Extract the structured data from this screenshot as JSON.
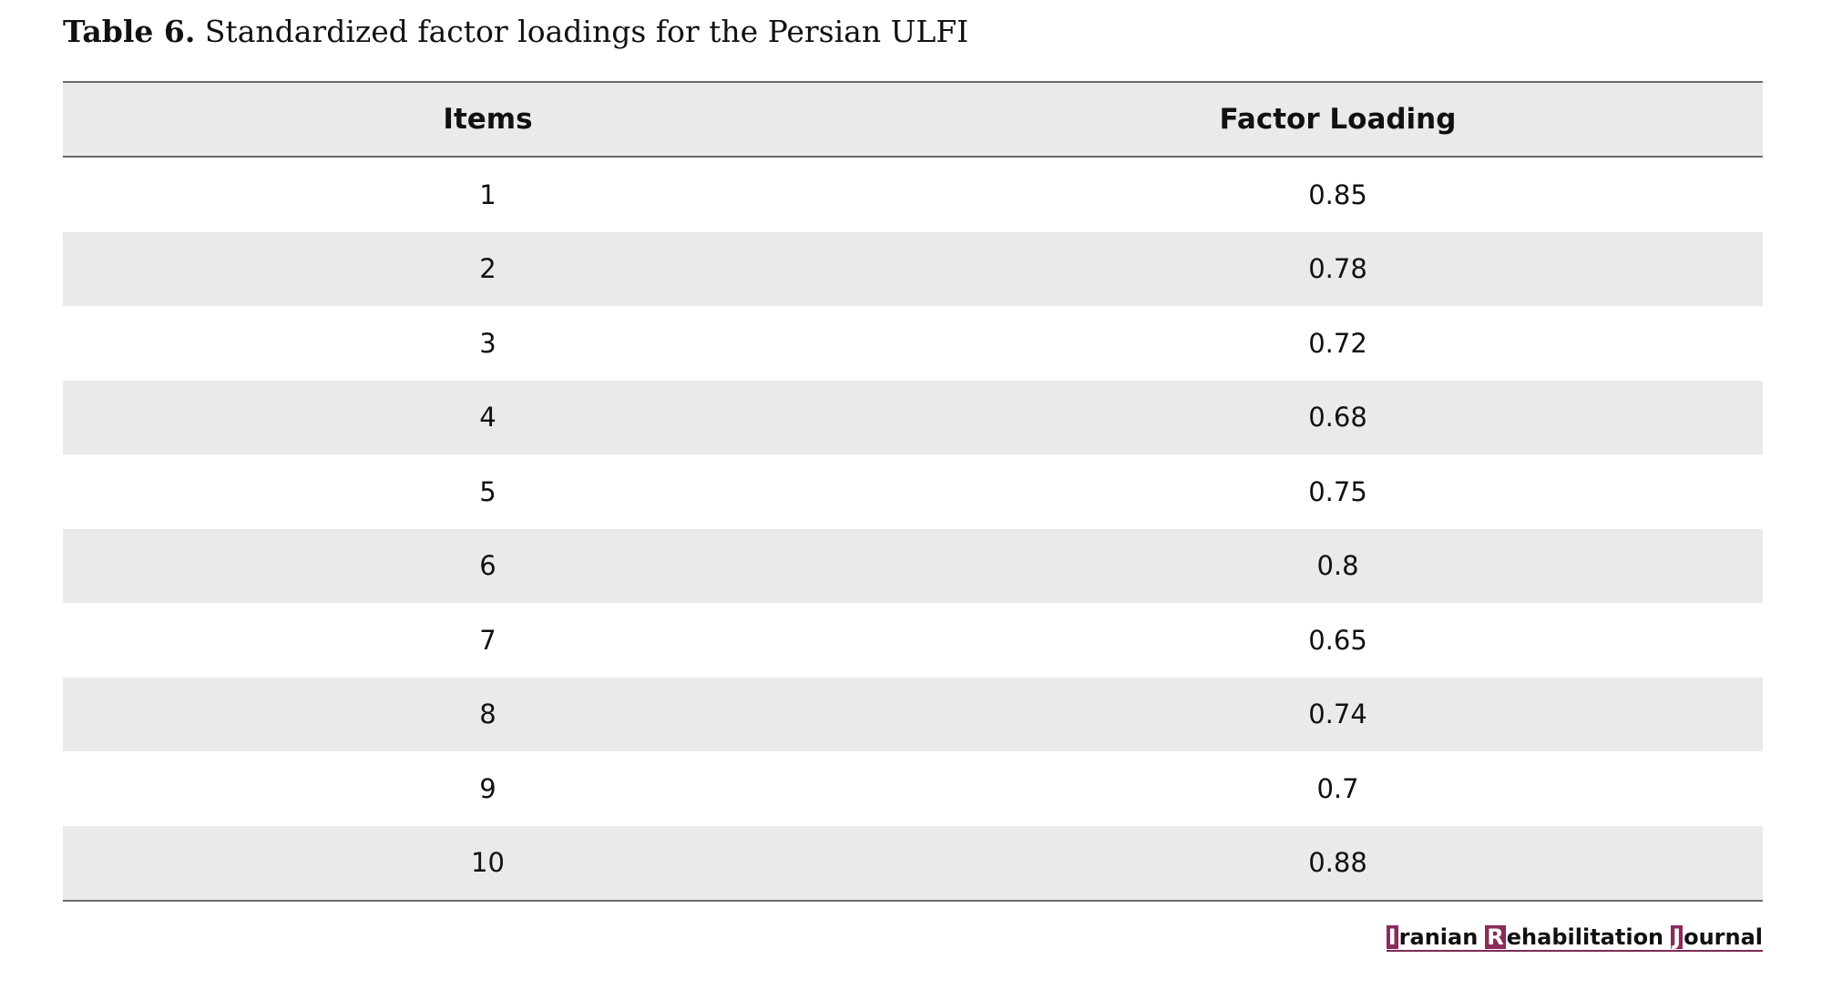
{
  "caption": {
    "label": "Table 6.",
    "text": "Standardized factor loadings for the Persian ULFI"
  },
  "table": {
    "headers": [
      "Items",
      "Factor Loading"
    ],
    "rows": [
      [
        "1",
        "0.85"
      ],
      [
        "2",
        "0.78"
      ],
      [
        "3",
        "0.72"
      ],
      [
        "4",
        "0.68"
      ],
      [
        "5",
        "0.75"
      ],
      [
        "6",
        "0.8"
      ],
      [
        "7",
        "0.65"
      ],
      [
        "8",
        "0.74"
      ],
      [
        "9",
        "0.7"
      ],
      [
        "10",
        "0.88"
      ]
    ]
  },
  "journal": {
    "words": [
      {
        "initial": "I",
        "rest": "ranian"
      },
      {
        "initial": "R",
        "rest": "ehabilitation"
      },
      {
        "initial": "J",
        "rest": "ournal"
      }
    ],
    "accent_color": "#8a2b5b"
  }
}
